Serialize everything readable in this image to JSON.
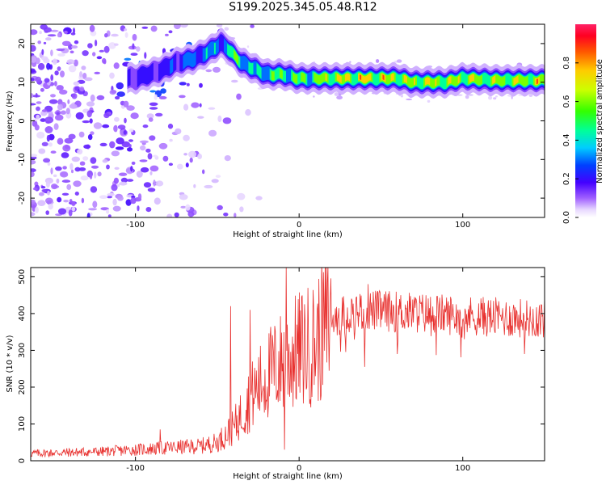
{
  "title": "S199.2025.345.05.48.R12",
  "chart_data": [
    {
      "type": "heatmap",
      "name": "spectrogram",
      "xlabel": "Height of straight line (km)",
      "ylabel": "Frequency (Hz)",
      "xlim": [
        -164,
        150
      ],
      "ylim": [
        -25,
        25
      ],
      "xticks": [
        -100,
        0,
        100
      ],
      "yticks": [
        -20,
        -10,
        0,
        10,
        20
      ],
      "colorbar": {
        "label": "Normalized spectral amplitude",
        "range": [
          0,
          1
        ],
        "ticks": [
          "0.0",
          "0.2",
          "0.4",
          "0.6",
          "0.8"
        ]
      },
      "ridge": {
        "x": [
          -100,
          -85,
          -75,
          -65,
          -55,
          -48,
          -44,
          -40,
          -35,
          -30,
          -25,
          -20,
          -15,
          -10,
          -5,
          0,
          10,
          20,
          40,
          60,
          70,
          80,
          90,
          100,
          120,
          140,
          150
        ],
        "freq": [
          11,
          13,
          15,
          16,
          18,
          20,
          19,
          17,
          15,
          14,
          13,
          12,
          12,
          12,
          11.5,
          11,
          11,
          11,
          11,
          11,
          10,
          10,
          10,
          11,
          10.5,
          10.5,
          10.5
        ],
        "amplitude": [
          0.25,
          0.3,
          0.35,
          0.4,
          0.5,
          0.4,
          0.55,
          0.7,
          0.6,
          0.55,
          0.5,
          0.6,
          0.65,
          0.7,
          0.65,
          0.7,
          0.75,
          0.85,
          0.9,
          0.85,
          0.8,
          0.85,
          0.8,
          0.85,
          0.8,
          0.85,
          0.8
        ]
      }
    },
    {
      "type": "line",
      "name": "snr",
      "xlabel": "Height of straight line (km)",
      "ylabel": "SNR (10 * v/v)",
      "xlim": [
        -164,
        150
      ],
      "ylim": [
        0,
        525
      ],
      "xticks": [
        -100,
        0,
        100
      ],
      "yticks": [
        0,
        100,
        200,
        300,
        400,
        500
      ],
      "color": "#e8312f",
      "trend": {
        "x": [
          -164,
          -120,
          -100,
          -80,
          -60,
          -50,
          -40,
          -30,
          -20,
          -10,
          0,
          10,
          20,
          30,
          40,
          60,
          80,
          100,
          120,
          150
        ],
        "y": [
          20,
          25,
          30,
          35,
          40,
          50,
          90,
          170,
          230,
          270,
          300,
          320,
          390,
          400,
          410,
          405,
          400,
          395,
          390,
          385
        ]
      },
      "spikes": [
        [
          -42,
          420
        ],
        [
          -30,
          410
        ],
        [
          -8,
          525
        ],
        [
          -9,
          30
        ],
        [
          42,
          480
        ],
        [
          40,
          255
        ],
        [
          60,
          290
        ],
        [
          -85,
          85
        ]
      ]
    }
  ]
}
